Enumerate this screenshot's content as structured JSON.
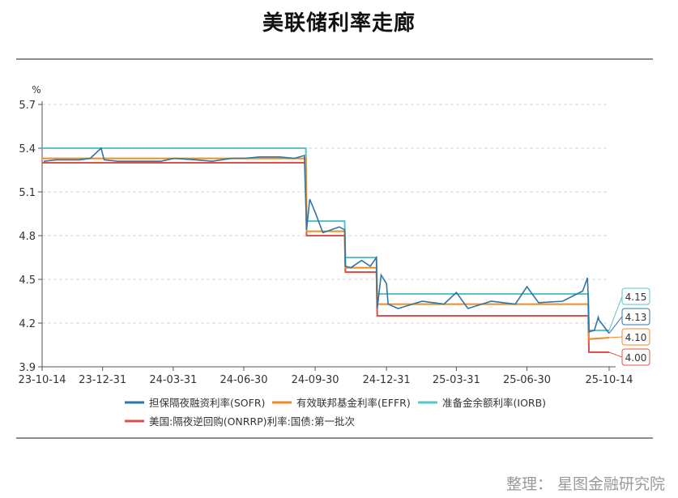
{
  "title": "美联储利率走廊",
  "credit": "整理：  星图金融研究院",
  "chart_data": {
    "type": "line",
    "ylabel": "%",
    "ylim": [
      3.9,
      5.7
    ],
    "yticks": [
      "3.9",
      "4.2",
      "4.5",
      "4.8",
      "5.1",
      "5.4",
      "5.7"
    ],
    "xticks": [
      "23-10-14",
      "23-12-31",
      "24-03-31",
      "24-06-30",
      "24-09-30",
      "24-12-31",
      "25-03-31",
      "25-06-30",
      "25-10-14"
    ],
    "grid": true,
    "legend_position": "bottom",
    "series": [
      {
        "name": "担保隔夜融资利率(SOFR)",
        "color": "#2e75a8",
        "x": [
          "2023-10-16",
          "2023-11-01",
          "2023-11-20",
          "2023-12-01",
          "2023-12-15",
          "2023-12-29",
          "2024-01-02",
          "2024-01-20",
          "2024-02-15",
          "2024-03-15",
          "2024-04-01",
          "2024-04-30",
          "2024-05-20",
          "2024-06-14",
          "2024-06-28",
          "2024-07-01",
          "2024-07-20",
          "2024-08-15",
          "2024-09-03",
          "2024-09-16",
          "2024-09-19",
          "2024-09-23",
          "2024-09-30",
          "2024-10-10",
          "2024-10-31",
          "2024-11-07",
          "2024-11-08",
          "2024-11-15",
          "2024-11-29",
          "2024-12-10",
          "2024-12-18",
          "2024-12-19",
          "2024-12-24",
          "2024-12-31",
          "2025-01-02",
          "2025-01-15",
          "2025-02-15",
          "2025-03-15",
          "2025-03-31",
          "2025-04-15",
          "2025-05-15",
          "2025-06-15",
          "2025-06-30",
          "2025-07-15",
          "2025-08-15",
          "2025-09-10",
          "2025-09-16",
          "2025-09-17",
          "2025-09-18",
          "2025-09-25",
          "2025-09-30",
          "2025-10-01",
          "2025-10-14"
        ],
        "y": [
          5.31,
          5.32,
          5.32,
          5.32,
          5.33,
          5.4,
          5.32,
          5.31,
          5.31,
          5.31,
          5.33,
          5.32,
          5.31,
          5.33,
          5.33,
          5.33,
          5.34,
          5.34,
          5.33,
          5.35,
          4.84,
          5.05,
          4.96,
          4.82,
          4.86,
          4.84,
          4.59,
          4.58,
          4.63,
          4.59,
          4.65,
          4.3,
          4.53,
          4.47,
          4.33,
          4.3,
          4.35,
          4.33,
          4.41,
          4.3,
          4.35,
          4.33,
          4.45,
          4.34,
          4.35,
          4.42,
          4.51,
          4.39,
          4.14,
          4.15,
          4.24,
          4.22,
          4.13
        ]
      },
      {
        "name": "有效联邦基金利率(EFFR)",
        "color": "#f08a24",
        "x": [
          "2023-10-14",
          "2024-09-18",
          "2024-09-19",
          "2024-11-07",
          "2024-11-08",
          "2024-12-18",
          "2024-12-19",
          "2025-09-17",
          "2025-09-18",
          "2025-10-14"
        ],
        "y": [
          5.33,
          5.33,
          4.83,
          4.83,
          4.58,
          4.58,
          4.33,
          4.33,
          4.09,
          4.1
        ]
      },
      {
        "name": "准备金余额利率(IORB)",
        "color": "#5bc4c8",
        "x": [
          "2023-10-14",
          "2024-09-18",
          "2024-09-19",
          "2024-11-07",
          "2024-11-08",
          "2024-12-18",
          "2024-12-19",
          "2025-09-17",
          "2025-09-18",
          "2025-10-14"
        ],
        "y": [
          5.4,
          5.4,
          4.9,
          4.9,
          4.65,
          4.65,
          4.4,
          4.4,
          4.15,
          4.15
        ]
      },
      {
        "name": "美国:隔夜逆回购(ONRRP)利率:国债:第一批次",
        "color": "#e0504a",
        "x": [
          "2023-10-14",
          "2024-09-18",
          "2024-09-19",
          "2024-11-07",
          "2024-11-08",
          "2024-12-18",
          "2024-12-19",
          "2025-09-17",
          "2025-09-18",
          "2025-10-14"
        ],
        "y": [
          5.3,
          5.3,
          4.8,
          4.8,
          4.55,
          4.55,
          4.25,
          4.25,
          4.0,
          4.0
        ]
      }
    ],
    "end_labels": [
      {
        "value": "4.15",
        "series": 2
      },
      {
        "value": "4.13",
        "series": 0
      },
      {
        "value": "4.10",
        "series": 1
      },
      {
        "value": "4.00",
        "series": 3
      }
    ]
  }
}
